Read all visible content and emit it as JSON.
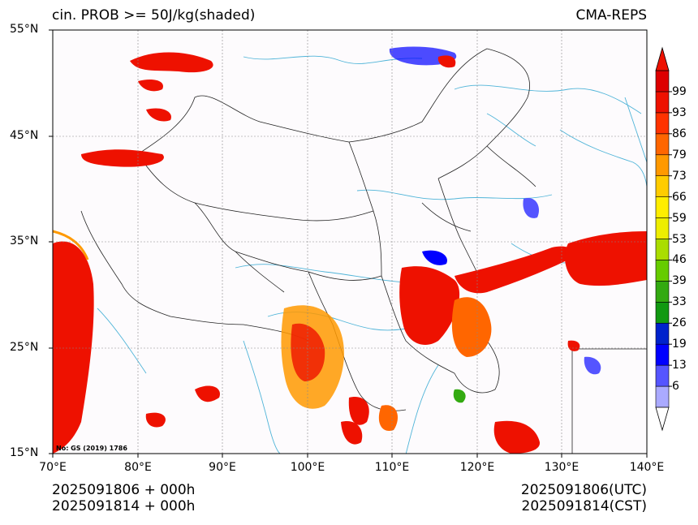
{
  "header": {
    "title_left": "cin. PROB >= 50J/kg(shaded)",
    "title_right": "CMA-REPS"
  },
  "map": {
    "lat_labels": [
      "55°N",
      "45°N",
      "35°N",
      "25°N",
      "15°N"
    ],
    "lon_labels": [
      "70°E",
      "80°E",
      "90°E",
      "100°E",
      "110°E",
      "120°E",
      "130°E",
      "140°E"
    ],
    "note": "No: GS (2019) 1786",
    "extent": {
      "lon": [
        70,
        140
      ],
      "lat": [
        15,
        55
      ]
    }
  },
  "colorbar": {
    "levels": [
      "6",
      "13",
      "19",
      "26",
      "33",
      "39",
      "46",
      "53",
      "59",
      "66",
      "73",
      "79",
      "86",
      "93",
      "99"
    ],
    "colors": [
      "#aaaaff",
      "#5555ff",
      "#0000ff",
      "#0022cc",
      "#119911",
      "#33aa11",
      "#66cc00",
      "#aadd00",
      "#eeee00",
      "#ffee00",
      "#ffcc00",
      "#ff9900",
      "#ff6600",
      "#ff3300",
      "#ee1100",
      "#dd0000"
    ],
    "min_color": "#ffffff",
    "max_color": "#ee1100"
  },
  "footer": {
    "left_line1": "2025091806  +  000h",
    "left_line2": "2025091814  +  000h",
    "right_line1": "2025091806(UTC)",
    "right_line2": "2025091814(CST)"
  }
}
